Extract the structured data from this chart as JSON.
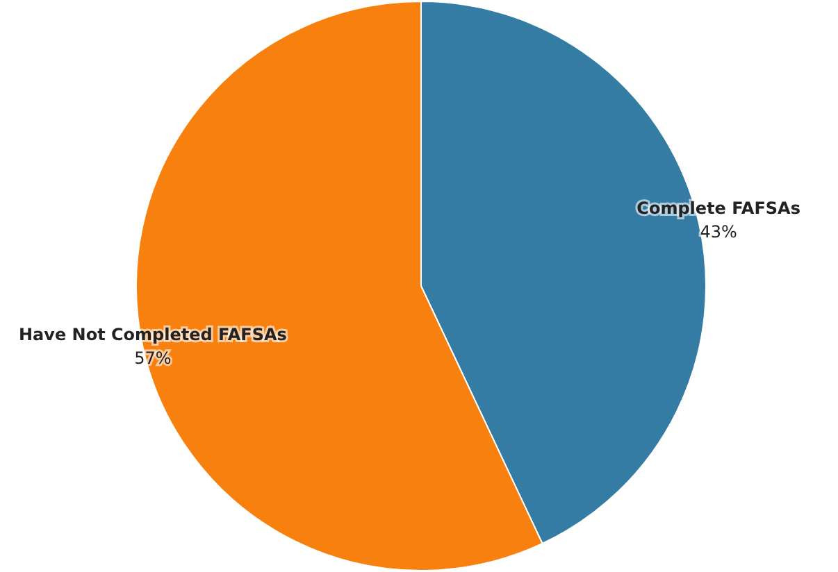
{
  "chart_data": {
    "type": "pie",
    "categories": [
      "Complete FAFSAs",
      "Have Not Completed FAFSAs"
    ],
    "values": [
      43,
      57
    ],
    "colors": [
      "#347ca3",
      "#f7800e"
    ],
    "value_labels": [
      "43%",
      "57%"
    ]
  }
}
